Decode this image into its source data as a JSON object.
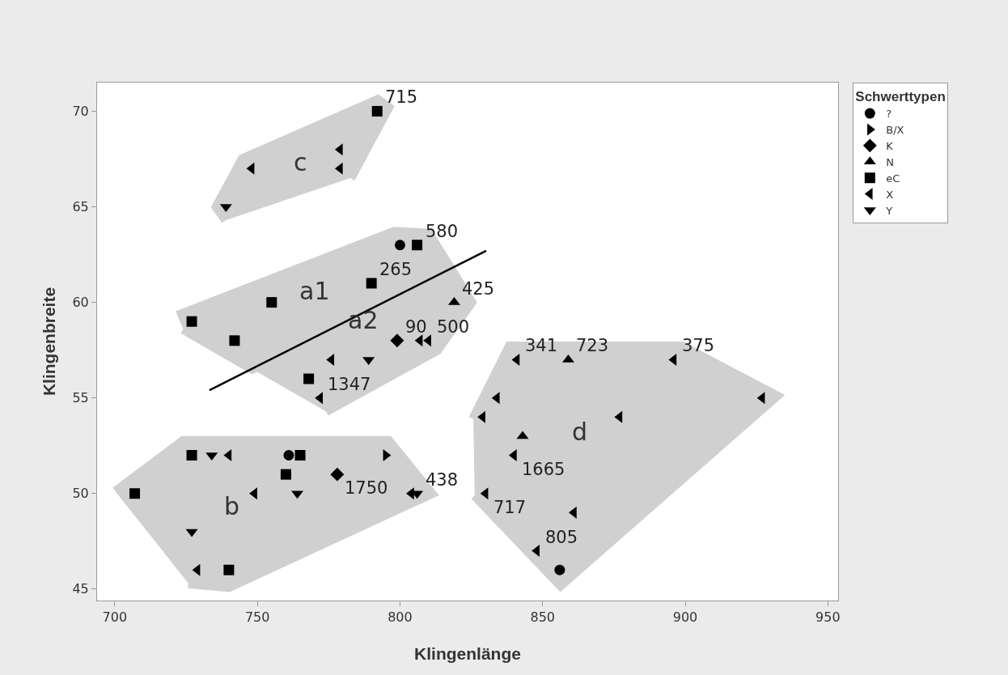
{
  "chart_data": {
    "type": "scatter",
    "xlabel": "Klingenlänge",
    "ylabel": "Klingenbreite",
    "legend_title": "Schwerttypen",
    "legend": "top right",
    "grid": false,
    "xlim": [
      693.8,
      953.6
    ],
    "xticks": [
      700,
      750,
      800,
      850,
      900,
      950
    ],
    "ylim": [
      44.4,
      71.5
    ],
    "yticks": [
      45,
      50,
      55,
      60,
      65,
      70
    ],
    "series": [
      {
        "type": "area",
        "name": "c",
        "color": "#d0d0d0",
        "x": [
          739,
          735.7,
          744.8,
          792.2,
          795.9,
          782.6
        ],
        "values": [
          64.3,
          65,
          67.5,
          70.6,
          70.2,
          66.5
        ]
      },
      {
        "type": "area",
        "name": "a1",
        "color": "#d0d0d0",
        "x": [
          722,
          798,
          810,
          817.7,
          748.1,
          724
        ],
        "values": [
          59.3,
          63.7,
          63.6,
          61.76,
          56.52,
          58.6
        ]
      },
      {
        "type": "area",
        "name": "a2",
        "color": "#d0d0d0",
        "x": [
          748.1,
          817.7,
          825,
          813,
          774
        ],
        "values": [
          56.52,
          61.76,
          60,
          57.5,
          54.3
        ]
      },
      {
        "type": "area",
        "name": "b",
        "color": "#d0d0d0",
        "x": [
          700.3,
          724,
          796,
          811,
          740,
          725.8
        ],
        "values": [
          50.1,
          52.75,
          52.75,
          50,
          45.1,
          45.3
        ]
      },
      {
        "type": "area",
        "name": "d",
        "color": "#d0d0d0",
        "x": [
          825.7,
          838.4,
          898.9,
          932,
          856.3,
          826.2
        ],
        "values": [
          53.9,
          57.7,
          57.7,
          55.1,
          45.2,
          49.9
        ]
      },
      {
        "type": "line",
        "color": "#000000",
        "x": [
          733.2,
          830.2
        ],
        "values": [
          55.4,
          62.7
        ]
      },
      {
        "name": "?",
        "marker": "circle",
        "color": "#000000",
        "x": [
          800,
          761,
          856
        ],
        "values": [
          63,
          52,
          46
        ]
      },
      {
        "name": "B/X",
        "marker": "triangle-right",
        "color": "#000000",
        "x": [
          795
        ],
        "values": [
          52
        ]
      },
      {
        "name": "K",
        "marker": "diamond",
        "color": "#000000",
        "x": [
          799,
          778
        ],
        "values": [
          58,
          51
        ]
      },
      {
        "name": "N",
        "marker": "triangle",
        "color": "#000000",
        "x": [
          819,
          859,
          843
        ],
        "values": [
          60,
          57,
          53
        ]
      },
      {
        "name": "eC",
        "marker": "square",
        "color": "#000000",
        "x": [
          792,
          806,
          790,
          755,
          727,
          742,
          768,
          727,
          765,
          707,
          760,
          740
        ],
        "values": [
          70,
          63,
          61,
          60,
          59,
          58,
          56,
          52,
          52,
          50,
          51,
          46
        ]
      },
      {
        "name": "X",
        "marker": "triangle-left",
        "color": "#000000",
        "x": [
          748,
          779,
          779,
          807,
          810,
          776,
          772,
          740,
          749,
          729,
          804,
          841,
          896,
          927,
          834,
          829,
          877,
          840,
          830,
          861,
          848
        ],
        "values": [
          67,
          68,
          67,
          58,
          58,
          57,
          55,
          52,
          50,
          46,
          50,
          57,
          57,
          55,
          55,
          54,
          54,
          52,
          50,
          49,
          47
        ]
      },
      {
        "name": "Y",
        "marker": "triangle-down",
        "color": "#000000",
        "x": [
          739,
          789,
          734,
          727,
          764,
          806
        ],
        "values": [
          65,
          57,
          52,
          48,
          50,
          50
        ]
      }
    ],
    "annotations": [
      {
        "text": "715",
        "x": 792,
        "y": 70
      },
      {
        "text": "580",
        "x": 806,
        "y": 63
      },
      {
        "text": "265",
        "x": 790,
        "y": 61
      },
      {
        "text": "425",
        "x": 819,
        "y": 60
      },
      {
        "text": "500",
        "x": 810,
        "y": 58
      },
      {
        "text": "90",
        "x": 799,
        "y": 58
      },
      {
        "text": "1347",
        "x": 772,
        "y": 55
      },
      {
        "text": "341",
        "x": 841,
        "y": 57
      },
      {
        "text": "723",
        "x": 859,
        "y": 57
      },
      {
        "text": "375",
        "x": 896,
        "y": 57
      },
      {
        "text": "1665",
        "x": 840,
        "y": 52
      },
      {
        "text": "717",
        "x": 830,
        "y": 50
      },
      {
        "text": "805",
        "x": 848,
        "y": 47
      },
      {
        "text": "1750",
        "x": 778,
        "y": 51
      },
      {
        "text": "438",
        "x": 806,
        "y": 50
      }
    ]
  }
}
